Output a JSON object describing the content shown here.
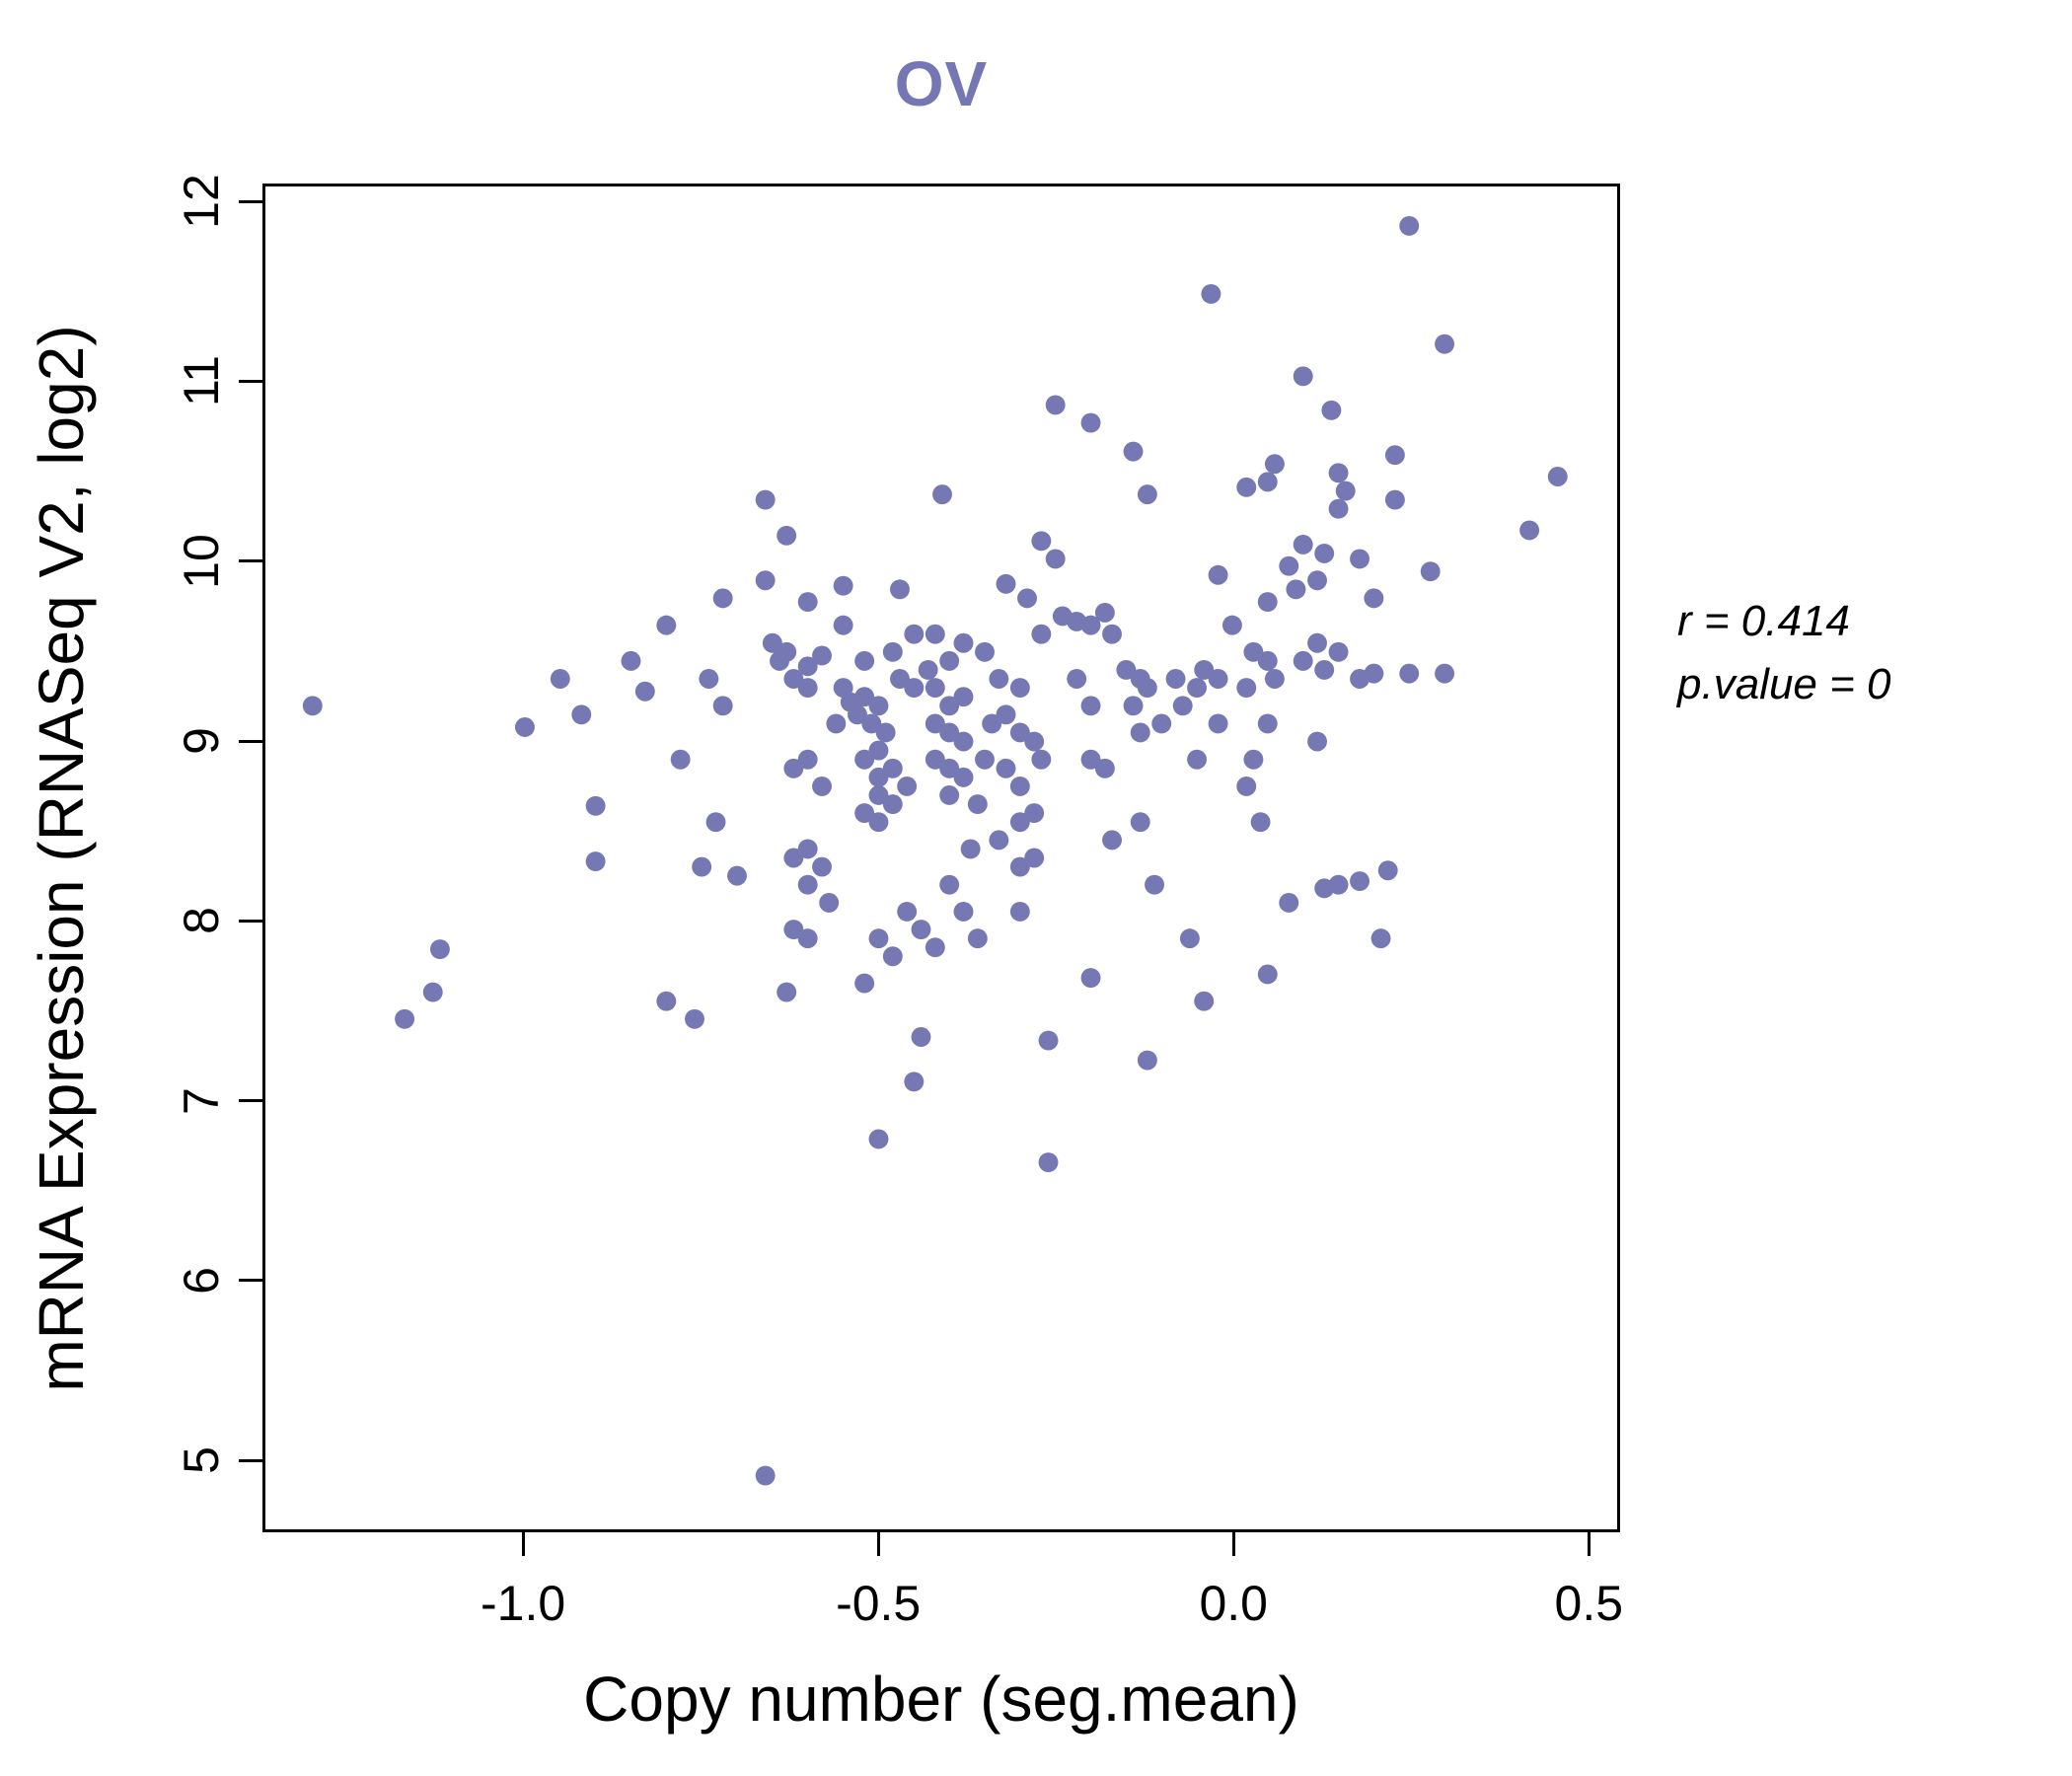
{
  "chart_data": {
    "type": "scatter",
    "title": "OV",
    "xlabel": "Copy number (seg.mean)",
    "ylabel": "mRNA Expression (RNASeq V2, log2)",
    "xlim": [
      -1.3667,
      0.544
    ],
    "ylim": [
      4.6,
      12.1
    ],
    "x_ticks": [
      -1.0,
      -0.5,
      0.0,
      0.5
    ],
    "x_tick_labels": [
      "-1.0",
      "-0.5",
      "0.0",
      "0.5"
    ],
    "y_ticks": [
      5,
      6,
      7,
      8,
      9,
      10,
      11,
      12
    ],
    "y_tick_labels": [
      "5",
      "6",
      "7",
      "8",
      "9",
      "10",
      "11",
      "12"
    ],
    "annotation": {
      "r_label": "r = 0.414",
      "p_label": "p.value = 0"
    },
    "point_color": "#7678b4",
    "title_color": "#7577b5",
    "grid": false,
    "legend": "none",
    "points": [
      [
        -1.3,
        9.2
      ],
      [
        -1.17,
        7.45
      ],
      [
        -1.13,
        7.6
      ],
      [
        -1.12,
        7.84
      ],
      [
        -1.0,
        9.08
      ],
      [
        -0.95,
        9.35
      ],
      [
        -0.92,
        9.15
      ],
      [
        -0.9,
        8.64
      ],
      [
        -0.9,
        8.33
      ],
      [
        -0.85,
        9.45
      ],
      [
        -0.83,
        9.28
      ],
      [
        -0.8,
        9.65
      ],
      [
        -0.8,
        7.55
      ],
      [
        -0.78,
        8.9
      ],
      [
        -0.76,
        7.45
      ],
      [
        -0.74,
        9.35
      ],
      [
        -0.72,
        9.8
      ],
      [
        -0.72,
        9.2
      ],
      [
        -0.73,
        8.55
      ],
      [
        -0.75,
        8.3
      ],
      [
        -0.7,
        8.25
      ],
      [
        -0.66,
        10.35
      ],
      [
        -0.66,
        9.9
      ],
      [
        -0.66,
        4.9
      ],
      [
        -0.65,
        9.55
      ],
      [
        -0.64,
        9.45
      ],
      [
        -0.63,
        10.15
      ],
      [
        -0.63,
        9.5
      ],
      [
        -0.63,
        7.6
      ],
      [
        -0.62,
        9.35
      ],
      [
        -0.62,
        8.85
      ],
      [
        -0.62,
        8.35
      ],
      [
        -0.62,
        7.95
      ],
      [
        -0.6,
        9.78
      ],
      [
        -0.6,
        9.42
      ],
      [
        -0.6,
        9.3
      ],
      [
        -0.6,
        8.9
      ],
      [
        -0.6,
        8.4
      ],
      [
        -0.6,
        8.2
      ],
      [
        -0.6,
        7.9
      ],
      [
        -0.58,
        9.48
      ],
      [
        -0.58,
        8.75
      ],
      [
        -0.58,
        8.3
      ],
      [
        -0.57,
        8.1
      ],
      [
        -0.56,
        9.1
      ],
      [
        -0.55,
        9.87
      ],
      [
        -0.55,
        9.65
      ],
      [
        -0.55,
        9.3
      ],
      [
        -0.54,
        9.22
      ],
      [
        -0.53,
        9.15
      ],
      [
        -0.52,
        9.45
      ],
      [
        -0.52,
        9.25
      ],
      [
        -0.52,
        8.9
      ],
      [
        -0.52,
        8.6
      ],
      [
        -0.52,
        7.65
      ],
      [
        -0.51,
        9.1
      ],
      [
        -0.5,
        9.2
      ],
      [
        -0.5,
        8.95
      ],
      [
        -0.5,
        8.8
      ],
      [
        -0.5,
        8.7
      ],
      [
        -0.5,
        8.55
      ],
      [
        -0.5,
        7.9
      ],
      [
        -0.5,
        6.78
      ],
      [
        -0.49,
        9.05
      ],
      [
        -0.48,
        9.5
      ],
      [
        -0.48,
        8.85
      ],
      [
        -0.48,
        8.65
      ],
      [
        -0.48,
        7.8
      ],
      [
        -0.47,
        9.85
      ],
      [
        -0.47,
        9.35
      ],
      [
        -0.46,
        8.75
      ],
      [
        -0.46,
        8.05
      ],
      [
        -0.45,
        9.6
      ],
      [
        -0.45,
        9.3
      ],
      [
        -0.45,
        7.1
      ],
      [
        -0.44,
        7.95
      ],
      [
        -0.44,
        7.35
      ],
      [
        -0.43,
        9.4
      ],
      [
        -0.42,
        9.6
      ],
      [
        -0.42,
        9.3
      ],
      [
        -0.42,
        9.1
      ],
      [
        -0.42,
        8.9
      ],
      [
        -0.42,
        7.85
      ],
      [
        -0.41,
        10.38
      ],
      [
        -0.4,
        9.45
      ],
      [
        -0.4,
        9.2
      ],
      [
        -0.4,
        9.05
      ],
      [
        -0.4,
        8.85
      ],
      [
        -0.4,
        8.7
      ],
      [
        -0.4,
        8.2
      ],
      [
        -0.38,
        9.55
      ],
      [
        -0.38,
        9.25
      ],
      [
        -0.38,
        9.0
      ],
      [
        -0.38,
        8.8
      ],
      [
        -0.38,
        8.05
      ],
      [
        -0.37,
        8.4
      ],
      [
        -0.36,
        8.65
      ],
      [
        -0.36,
        7.9
      ],
      [
        -0.35,
        9.5
      ],
      [
        -0.35,
        8.9
      ],
      [
        -0.34,
        9.1
      ],
      [
        -0.33,
        9.35
      ],
      [
        -0.33,
        8.45
      ],
      [
        -0.32,
        9.88
      ],
      [
        -0.32,
        9.15
      ],
      [
        -0.32,
        8.85
      ],
      [
        -0.3,
        9.3
      ],
      [
        -0.3,
        9.05
      ],
      [
        -0.3,
        8.75
      ],
      [
        -0.3,
        8.55
      ],
      [
        -0.3,
        8.3
      ],
      [
        -0.3,
        8.05
      ],
      [
        -0.29,
        9.8
      ],
      [
        -0.28,
        9.0
      ],
      [
        -0.28,
        8.6
      ],
      [
        -0.28,
        8.35
      ],
      [
        -0.27,
        10.12
      ],
      [
        -0.27,
        9.6
      ],
      [
        -0.27,
        8.9
      ],
      [
        -0.26,
        7.33
      ],
      [
        -0.26,
        6.65
      ],
      [
        -0.25,
        10.88
      ],
      [
        -0.25,
        10.02
      ],
      [
        -0.24,
        9.7
      ],
      [
        -0.22,
        9.67
      ],
      [
        -0.22,
        9.35
      ],
      [
        -0.2,
        10.78
      ],
      [
        -0.2,
        9.65
      ],
      [
        -0.2,
        9.2
      ],
      [
        -0.2,
        8.9
      ],
      [
        -0.2,
        7.68
      ],
      [
        -0.18,
        9.72
      ],
      [
        -0.18,
        8.85
      ],
      [
        -0.17,
        9.6
      ],
      [
        -0.17,
        8.45
      ],
      [
        -0.15,
        9.4
      ],
      [
        -0.14,
        10.62
      ],
      [
        -0.14,
        9.2
      ],
      [
        -0.13,
        9.35
      ],
      [
        -0.13,
        9.05
      ],
      [
        -0.13,
        8.55
      ],
      [
        -0.12,
        10.38
      ],
      [
        -0.12,
        9.3
      ],
      [
        -0.12,
        7.22
      ],
      [
        -0.11,
        8.2
      ],
      [
        -0.1,
        9.1
      ],
      [
        -0.08,
        9.35
      ],
      [
        -0.07,
        9.2
      ],
      [
        -0.06,
        7.9
      ],
      [
        -0.05,
        9.3
      ],
      [
        -0.05,
        8.9
      ],
      [
        -0.04,
        9.4
      ],
      [
        -0.04,
        7.55
      ],
      [
        -0.03,
        11.5
      ],
      [
        -0.02,
        9.93
      ],
      [
        -0.02,
        9.35
      ],
      [
        -0.02,
        9.1
      ],
      [
        0.0,
        9.65
      ],
      [
        0.02,
        10.42
      ],
      [
        0.02,
        9.3
      ],
      [
        0.02,
        8.75
      ],
      [
        0.03,
        9.5
      ],
      [
        0.03,
        8.9
      ],
      [
        0.04,
        8.55
      ],
      [
        0.05,
        10.45
      ],
      [
        0.05,
        9.78
      ],
      [
        0.05,
        9.45
      ],
      [
        0.05,
        9.1
      ],
      [
        0.05,
        7.7
      ],
      [
        0.06,
        10.55
      ],
      [
        0.06,
        9.35
      ],
      [
        0.08,
        9.98
      ],
      [
        0.08,
        8.1
      ],
      [
        0.09,
        9.85
      ],
      [
        0.1,
        11.04
      ],
      [
        0.1,
        10.1
      ],
      [
        0.1,
        9.45
      ],
      [
        0.12,
        9.9
      ],
      [
        0.12,
        9.55
      ],
      [
        0.12,
        9.0
      ],
      [
        0.13,
        10.05
      ],
      [
        0.13,
        9.4
      ],
      [
        0.13,
        8.18
      ],
      [
        0.14,
        10.85
      ],
      [
        0.15,
        10.5
      ],
      [
        0.15,
        10.3
      ],
      [
        0.15,
        9.5
      ],
      [
        0.15,
        8.2
      ],
      [
        0.16,
        10.4
      ],
      [
        0.18,
        10.02
      ],
      [
        0.18,
        9.35
      ],
      [
        0.18,
        8.22
      ],
      [
        0.2,
        9.8
      ],
      [
        0.2,
        9.38
      ],
      [
        0.21,
        7.9
      ],
      [
        0.22,
        8.28
      ],
      [
        0.23,
        10.6
      ],
      [
        0.23,
        10.35
      ],
      [
        0.25,
        11.88
      ],
      [
        0.25,
        9.38
      ],
      [
        0.28,
        9.95
      ],
      [
        0.3,
        11.22
      ],
      [
        0.3,
        9.38
      ],
      [
        0.42,
        10.18
      ],
      [
        0.46,
        10.48
      ]
    ]
  }
}
